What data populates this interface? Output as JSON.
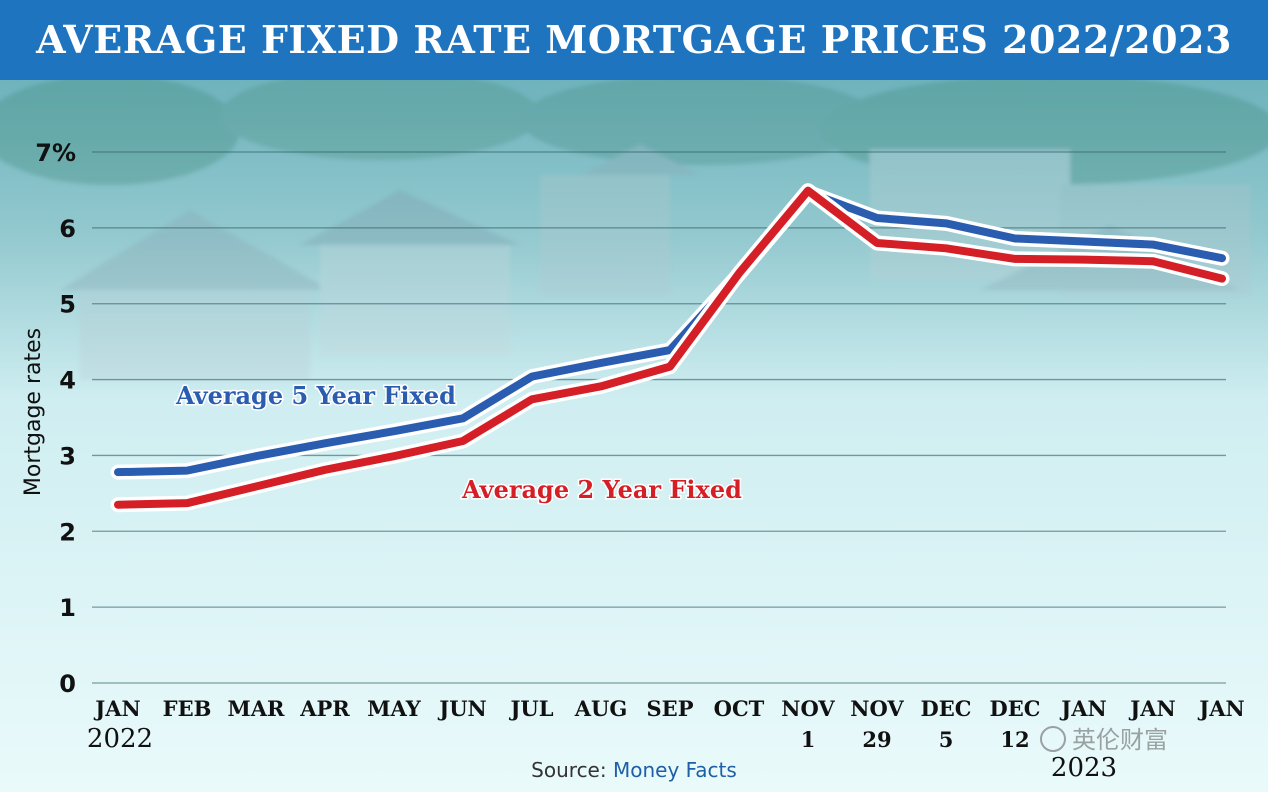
{
  "chart_data": {
    "type": "line",
    "title": "AVERAGE FIXED RATE MORTGAGE PRICES 2022/2023",
    "ylabel": "Mortgage rates",
    "xlabel": "",
    "ylim": [
      0,
      7
    ],
    "y_ticks": [
      "0",
      "1",
      "2",
      "3",
      "4",
      "5",
      "6",
      "7%"
    ],
    "categories": [
      {
        "line1": "JAN",
        "line2": "2022"
      },
      {
        "line1": "FEB",
        "line2": ""
      },
      {
        "line1": "MAR",
        "line2": ""
      },
      {
        "line1": "APR",
        "line2": ""
      },
      {
        "line1": "MAY",
        "line2": ""
      },
      {
        "line1": "JUN",
        "line2": ""
      },
      {
        "line1": "JUL",
        "line2": ""
      },
      {
        "line1": "AUG",
        "line2": ""
      },
      {
        "line1": "SEP",
        "line2": ""
      },
      {
        "line1": "OCT",
        "line2": ""
      },
      {
        "line1": "NOV",
        "line2": "1"
      },
      {
        "line1": "NOV",
        "line2": "29"
      },
      {
        "line1": "DEC",
        "line2": "5"
      },
      {
        "line1": "DEC",
        "line2": "12"
      },
      {
        "line1": "JAN",
        "line2": ""
      },
      {
        "line1": "JAN",
        "line2": ""
      },
      {
        "line1": "JAN",
        "line2": ""
      }
    ],
    "year_2023_label": "2023",
    "grid": true,
    "series": [
      {
        "name": "Average 5 Year Fixed",
        "color": "#2a5db0",
        "x": [
          0,
          1,
          2,
          3,
          4,
          5,
          6,
          7,
          8,
          9,
          10,
          11,
          12,
          13,
          14,
          15,
          16
        ],
        "values": [
          2.74,
          2.76,
          2.95,
          3.12,
          3.28,
          3.45,
          4.0,
          4.18,
          4.35,
          5.35,
          6.43,
          6.09,
          6.02,
          5.82,
          5.78,
          5.74,
          5.56
        ]
      },
      {
        "name": "Average 2 Year Fixed",
        "color": "#d41f26",
        "x": [
          0,
          1,
          2,
          3,
          4,
          5,
          6,
          7,
          8,
          9,
          10,
          11,
          12,
          13,
          14,
          15,
          16
        ],
        "values": [
          2.39,
          2.41,
          2.63,
          2.85,
          3.03,
          3.23,
          3.78,
          3.95,
          4.21,
          5.44,
          6.53,
          5.84,
          5.77,
          5.63,
          5.62,
          5.6,
          5.37
        ]
      }
    ]
  },
  "source": {
    "label": "Source:",
    "name": "Money Facts"
  },
  "watermark": "英伦财富"
}
